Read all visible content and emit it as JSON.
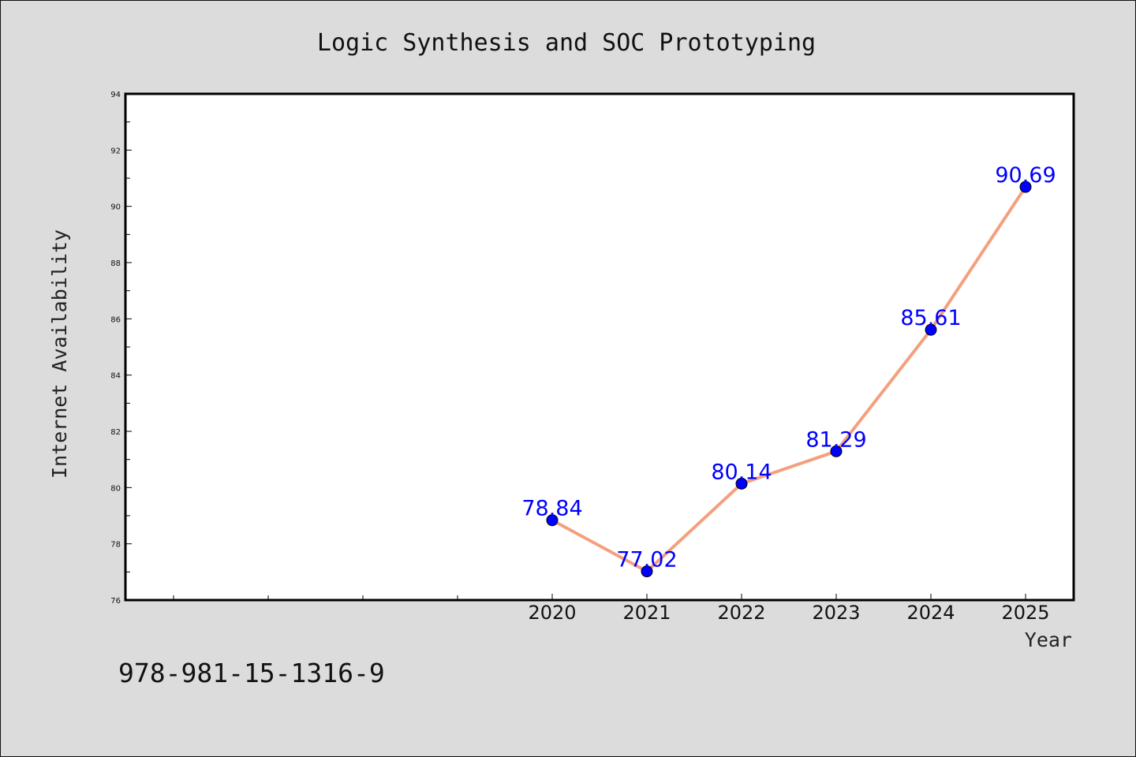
{
  "chart_data": {
    "type": "line",
    "title": "Logic Synthesis and SOC Prototyping",
    "xlabel": "Year",
    "ylabel": "Internet Availability",
    "x": [
      "2020",
      "2021",
      "2022",
      "2023",
      "2024",
      "2025"
    ],
    "series": [
      {
        "values": [
          78.84,
          77.02,
          80.14,
          81.29,
          85.61,
          90.69
        ],
        "labels": [
          "78.84",
          "77.02",
          "80.14",
          "81.29",
          "85.61",
          "90.69"
        ]
      }
    ],
    "ylim": [
      76,
      94
    ],
    "yticks": [
      "76",
      "78",
      "80",
      "82",
      "84",
      "86",
      "88",
      "90",
      "92",
      "94"
    ],
    "grid": false,
    "legend": "none",
    "colors": {
      "line": "#f4a07e",
      "marker": "#0000ff",
      "label": "#0000ff",
      "background": "#dcdcdc",
      "plot_background": "#ffffff"
    }
  },
  "footnote": "978-981-15-1316-9"
}
